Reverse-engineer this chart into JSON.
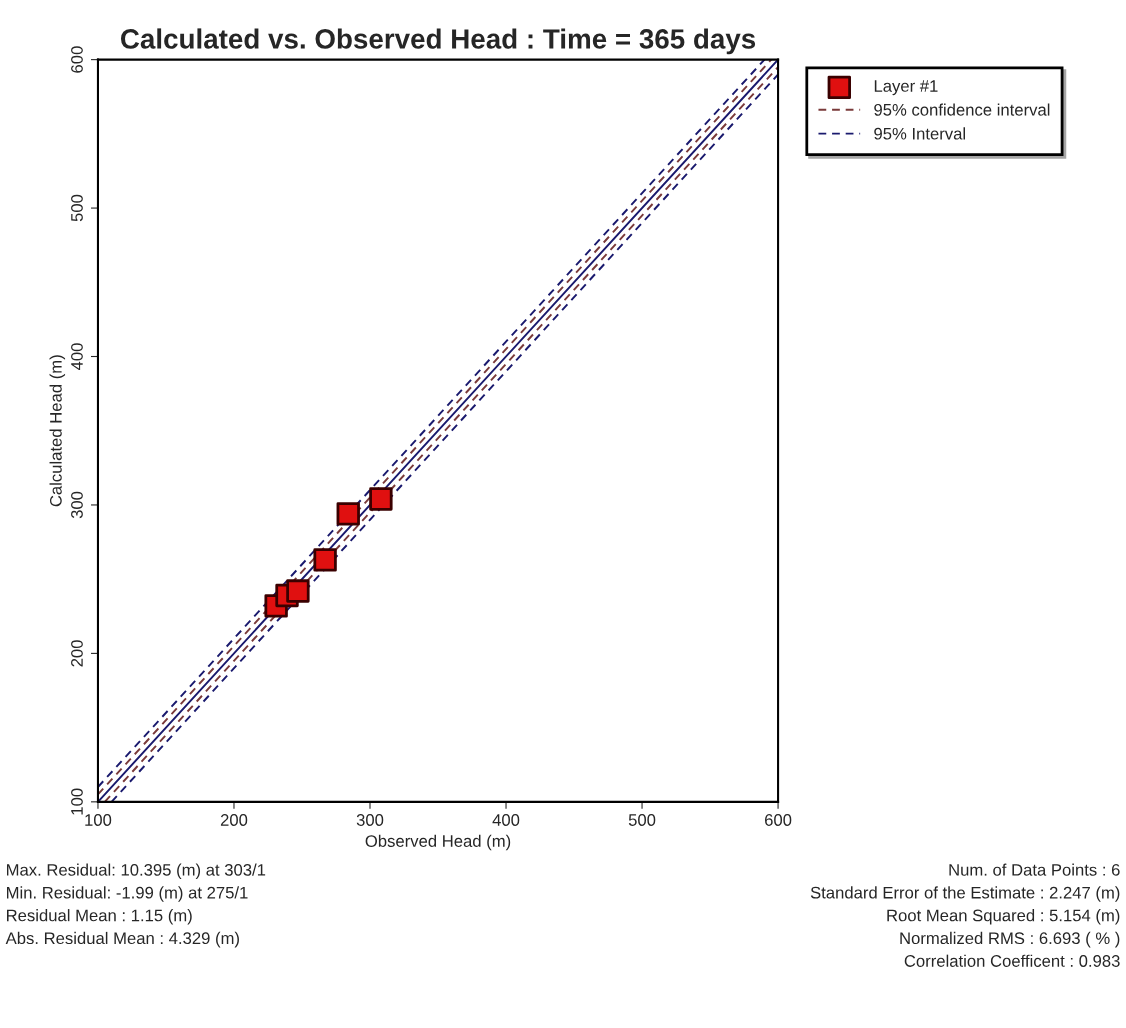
{
  "chart_data": {
    "type": "scatter",
    "title": "Calculated vs. Observed Head : Time = 365 days",
    "xlabel": "Observed Head (m)",
    "ylabel": "Calculated Head (m)",
    "x": [
      231,
      239,
      247,
      267,
      284,
      308
    ],
    "series": [
      {
        "name": "Layer #1",
        "color": "#e01010",
        "marker": "square",
        "values": [
          232,
          239,
          242,
          263,
          294,
          304
        ]
      },
      {
        "type": "line",
        "color": "#1a1a6e",
        "line_style": "solid",
        "x": [
          100,
          600
        ],
        "values": [
          100,
          600
        ]
      },
      {
        "name": "95% confidence interval",
        "type": "line",
        "color": "#7a3a3a",
        "line_style": "dashed",
        "x": [
          100,
          595
        ],
        "values": [
          105,
          600
        ]
      },
      {
        "type": "line",
        "color": "#7a3a3a",
        "line_style": "dashed",
        "x": [
          105,
          600
        ],
        "values": [
          100,
          595
        ]
      },
      {
        "name": "95% Interval",
        "type": "line",
        "color": "#1a1a6e",
        "line_style": "dashed",
        "x": [
          100,
          590
        ],
        "values": [
          110,
          600
        ]
      },
      {
        "type": "line",
        "color": "#1a1a6e",
        "line_style": "dashed",
        "x": [
          110,
          600
        ],
        "values": [
          100,
          590
        ]
      }
    ],
    "xlim": [
      100,
      600
    ],
    "ylim": [
      100,
      600
    ],
    "xticks": [
      100,
      200,
      300,
      400,
      500,
      600
    ],
    "yticks": [
      100,
      200,
      300,
      400,
      500,
      600
    ],
    "grid": false,
    "legend": "top right",
    "annotations": [
      "Max. Residual: 10.395 (m) at 303/1\nMin. Residual: -1.99 (m) at 275/1\nResidual Mean : 1.15 (m)\nAbs. Residual Mean : 4.329 (m)",
      "Num. of Data Points : 6\nStandard Error of the Estimate : 2.247 (m)\nRoot Mean Squared : 5.154 (m)\nNormalized RMS : 6.693 ( % )\nCorrelation Coefficent : 0.983"
    ]
  }
}
